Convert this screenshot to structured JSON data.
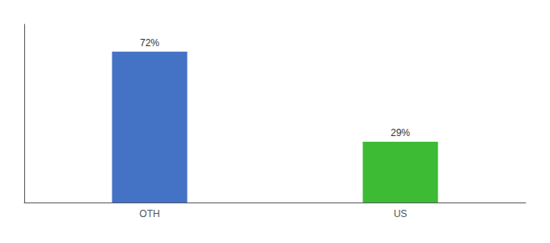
{
  "chart_data": {
    "type": "bar",
    "categories": [
      "OTH",
      "US"
    ],
    "values": [
      72,
      29
    ],
    "colors": [
      "#4472c4",
      "#3dbb35"
    ],
    "data_labels": true,
    "value_labels": [
      "72%",
      "29%"
    ],
    "ylim": [
      0,
      85
    ],
    "tick_labels": "x",
    "grid": false
  }
}
